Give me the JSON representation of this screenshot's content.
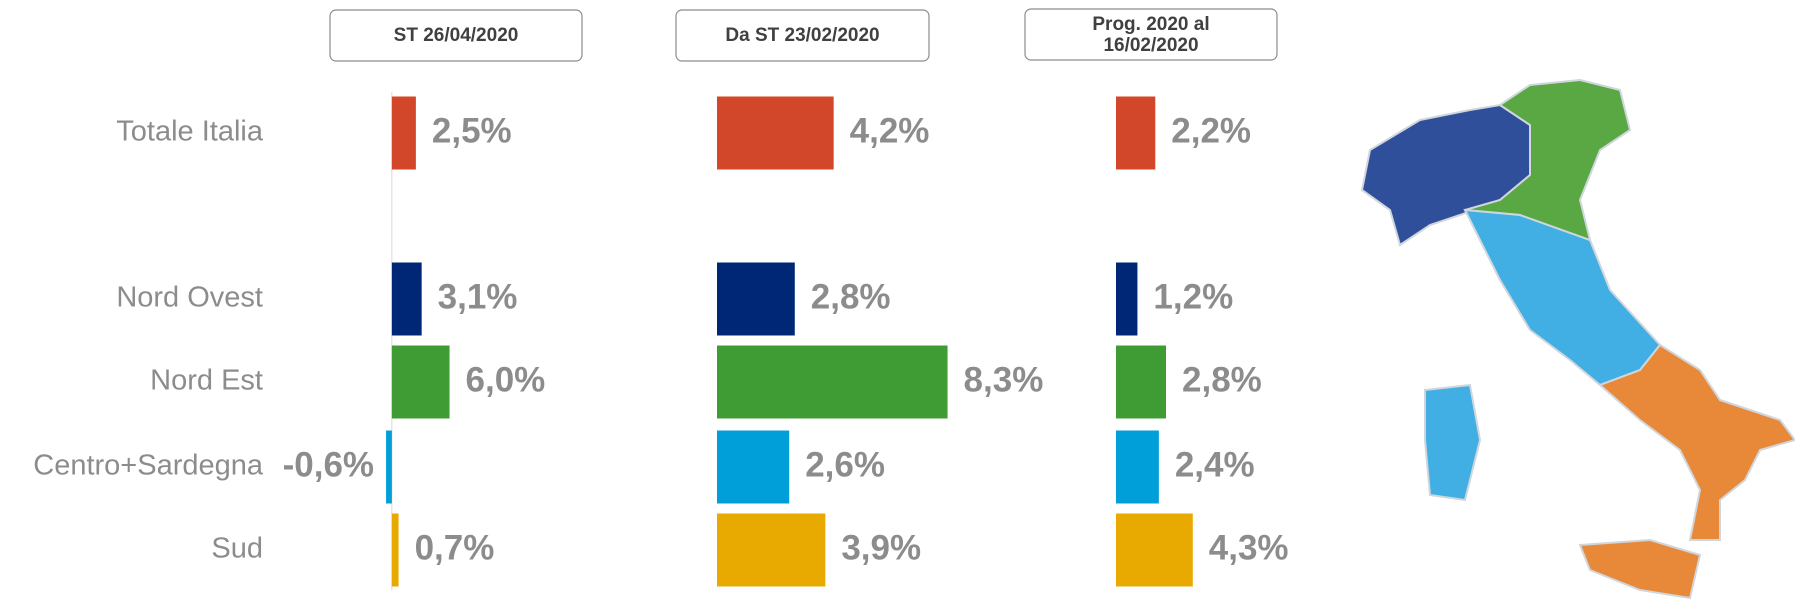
{
  "chart_data": {
    "type": "bar",
    "orientation": "horizontal",
    "categories": [
      "Totale Italia",
      "Nord Ovest",
      "Nord Est",
      "Centro+Sardegna",
      "Sud"
    ],
    "colors": [
      "#d2472a",
      "#002776",
      "#3f9c35",
      "#009fda",
      "#e8a900"
    ],
    "series": [
      {
        "name": "ST 26/04/2020",
        "values": [
          2.5,
          3.1,
          6.0,
          -0.6,
          0.7
        ],
        "value_labels": [
          "2,5%",
          "3,1%",
          "6,0%",
          "-0,6%",
          "0,7%"
        ],
        "xlim": [
          -3,
          23
        ]
      },
      {
        "name": "Da ST 23/02/2020",
        "values": [
          4.2,
          2.8,
          8.3,
          2.6,
          3.9
        ],
        "value_labels": [
          "4,2%",
          "2,8%",
          "8,3%",
          "2,6%",
          "3,9%"
        ],
        "xlim": [
          0,
          9
        ]
      },
      {
        "name": "Prog. 2020 al 16/02/2020",
        "values": [
          2.2,
          1.2,
          2.8,
          2.4,
          4.3
        ],
        "value_labels": [
          "2,2%",
          "1,2%",
          "2,8%",
          "2,4%",
          "4,3%"
        ],
        "xlim": [
          0,
          14
        ]
      }
    ]
  }
}
